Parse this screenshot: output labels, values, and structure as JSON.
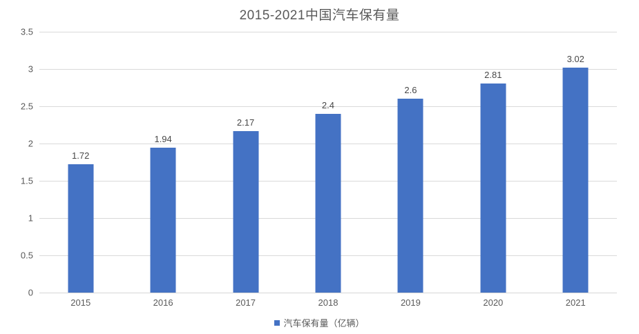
{
  "chart_data": {
    "type": "bar",
    "title": "2015-2021中国汽车保有量",
    "categories": [
      "2015",
      "2016",
      "2017",
      "2018",
      "2019",
      "2020",
      "2021"
    ],
    "series": [
      {
        "name": "汽车保有量（亿辆）",
        "values": [
          1.72,
          1.94,
          2.17,
          2.4,
          2.6,
          2.81,
          3.02
        ]
      }
    ],
    "data_labels": [
      "1.72",
      "1.94",
      "2.17",
      "2.4",
      "2.6",
      "2.81",
      "3.02"
    ],
    "xlabel": "",
    "ylabel": "",
    "ylim": [
      0,
      3.5
    ],
    "yticks": [
      "0",
      "0.5",
      "1",
      "1.5",
      "2",
      "2.5",
      "3",
      "3.5"
    ],
    "grid": true,
    "legend_position": "bottom",
    "legend_label": "汽车保有量（亿辆）",
    "bar_color": "#4472C4",
    "grid_color": "#d9d9d9",
    "text_color": "#595959"
  }
}
